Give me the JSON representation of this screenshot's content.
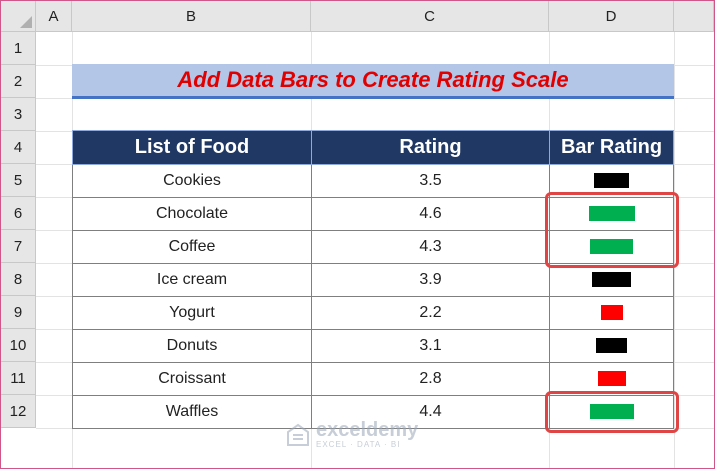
{
  "columns": [
    "A",
    "B",
    "C",
    "D"
  ],
  "rows": [
    "1",
    "2",
    "3",
    "4",
    "5",
    "6",
    "7",
    "8",
    "9",
    "10",
    "11",
    "12"
  ],
  "title": "Add Data Bars to Create Rating Scale",
  "table": {
    "headers": [
      "List of Food",
      "Rating",
      "Bar Rating"
    ],
    "rows": [
      {
        "food": "Cookies",
        "rating": "3.5",
        "bar_value": 3.5,
        "bar_color": "#000000"
      },
      {
        "food": "Chocolate",
        "rating": "4.6",
        "bar_value": 4.6,
        "bar_color": "#00b050"
      },
      {
        "food": "Coffee",
        "rating": "4.3",
        "bar_value": 4.3,
        "bar_color": "#00b050"
      },
      {
        "food": "Ice cream",
        "rating": "3.9",
        "bar_value": 3.9,
        "bar_color": "#000000"
      },
      {
        "food": "Yogurt",
        "rating": "2.2",
        "bar_value": 2.2,
        "bar_color": "#ff0000"
      },
      {
        "food": "Donuts",
        "rating": "3.1",
        "bar_value": 3.1,
        "bar_color": "#000000"
      },
      {
        "food": "Croissant",
        "rating": "2.8",
        "bar_value": 2.8,
        "bar_color": "#ff0000"
      },
      {
        "food": "Waffles",
        "rating": "4.4",
        "bar_value": 4.4,
        "bar_color": "#00b050"
      }
    ]
  },
  "highlight_color": "#e04545",
  "watermark": {
    "name": "exceldemy",
    "tagline": "EXCEL · DATA · BI"
  }
}
